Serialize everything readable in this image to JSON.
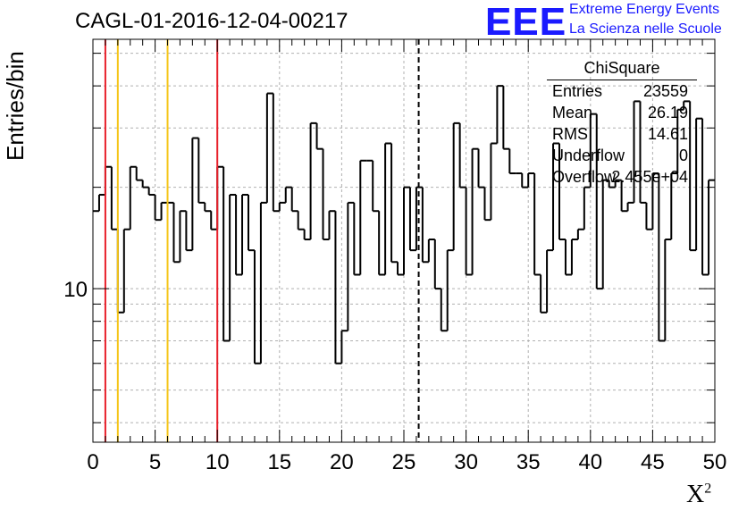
{
  "title": "CAGL-01-2016-12-04-00217",
  "logo": {
    "mark": "EEE",
    "line1": "Extreme Energy Events",
    "line2": "La Scienza nelle Scuole",
    "color": "#1a1aff"
  },
  "stats": {
    "title": "ChiSquare",
    "rows": [
      {
        "key": "Entries",
        "value": "23559"
      },
      {
        "key": "Mean",
        "value": "26.19"
      },
      {
        "key": "RMS",
        "value": "14.61"
      },
      {
        "key": "Underflow",
        "value": "0"
      },
      {
        "key": "Overflow",
        "value": "2.455e+04"
      }
    ]
  },
  "chart_data": {
    "type": "histogram",
    "xlabel": "X",
    "xlabel_superscript": "2",
    "ylabel": "Entries/bin",
    "xlim": [
      0,
      50
    ],
    "ylim": [
      3.5,
      55
    ],
    "yscale": "log",
    "bin_width": 0.5,
    "grid": true,
    "x_ticks": [
      "0",
      "5",
      "10",
      "15",
      "20",
      "25",
      "30",
      "35",
      "40",
      "45",
      "50"
    ],
    "y_ticks": [
      "10"
    ],
    "values": [
      17,
      19,
      23,
      15,
      8.5,
      15,
      23,
      21,
      20,
      19,
      16,
      18,
      18,
      12,
      17,
      13,
      28,
      18,
      17,
      15,
      23,
      7,
      19,
      11,
      19,
      13,
      6,
      18,
      38,
      17,
      18,
      20,
      17,
      15,
      14,
      31,
      26,
      14,
      17,
      6,
      7.5,
      18,
      11,
      24,
      24,
      17,
      11,
      27,
      12,
      11,
      20,
      13,
      20,
      12,
      14,
      10,
      7.5,
      13,
      31,
      20,
      11,
      26,
      20,
      16,
      27,
      40,
      26,
      22,
      22,
      20,
      22,
      11,
      8.5,
      13,
      27,
      14,
      11,
      14,
      15,
      20,
      33,
      10,
      21,
      20,
      21,
      17,
      18,
      36,
      18,
      15,
      22,
      7,
      14,
      22,
      34,
      36,
      13,
      32,
      11,
      21
    ],
    "vlines": [
      {
        "x": 1,
        "color": "#e8202a",
        "style": "solid"
      },
      {
        "x": 2,
        "color": "#f5c518",
        "style": "solid"
      },
      {
        "x": 6,
        "color": "#f5c518",
        "style": "solid"
      },
      {
        "x": 10,
        "color": "#e8202a",
        "style": "solid"
      },
      {
        "x": 26.19,
        "color": "#000000",
        "style": "dashed"
      }
    ]
  }
}
